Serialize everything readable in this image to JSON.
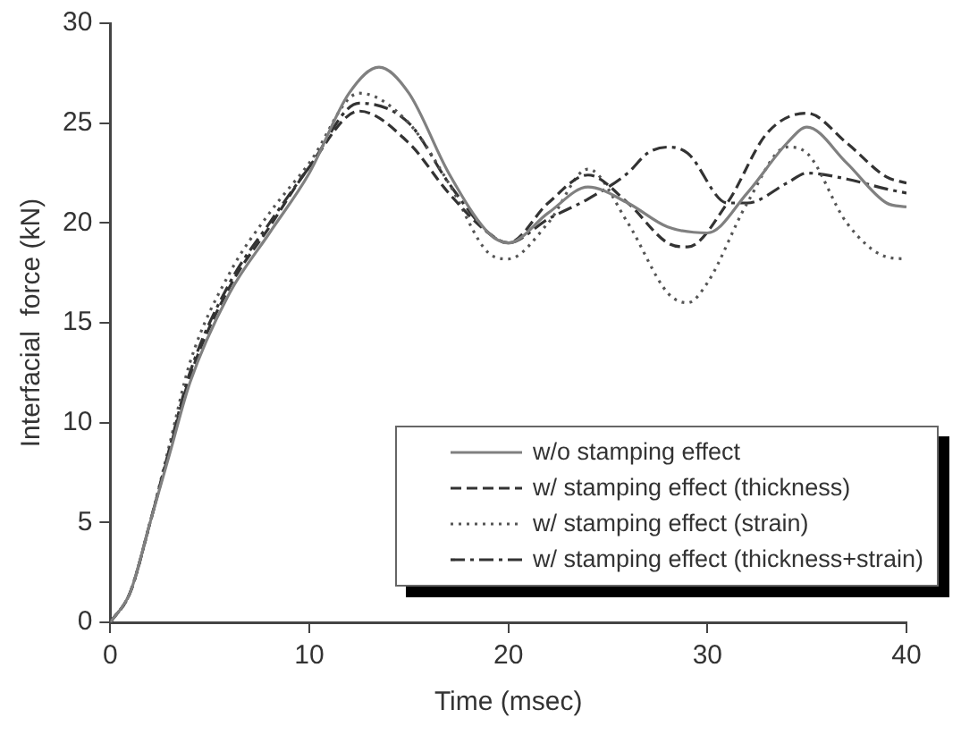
{
  "chart_data": {
    "type": "line",
    "xlabel": "Time (msec)",
    "ylabel": "Interfacial  force (kN)",
    "xlim": [
      0,
      40
    ],
    "xticks": [
      0,
      10,
      20,
      30,
      40
    ],
    "ylim": [
      0,
      30
    ],
    "yticks": [
      0,
      5,
      10,
      15,
      20,
      25,
      30
    ],
    "grid": false,
    "legend": "bottom right",
    "marker": "none",
    "series": [
      {
        "name": "w/o stamping effect",
        "color": "#808080",
        "line_style": "solid",
        "x": [
          0,
          1,
          2,
          3,
          4,
          6,
          8,
          10,
          12,
          13.5,
          15,
          17,
          19,
          20,
          22,
          24,
          26,
          28,
          30,
          32,
          34,
          35,
          37,
          39,
          40
        ],
        "values": [
          0,
          1.5,
          5,
          8.5,
          12,
          16.5,
          19.5,
          22.5,
          26.5,
          27.8,
          26.5,
          22.5,
          19.5,
          19,
          20.5,
          21.8,
          21,
          19.8,
          19.5,
          21.5,
          24,
          24.8,
          23,
          21,
          20.8
        ]
      },
      {
        "name": "w/ stamping effect (thickness)",
        "color": "#333333",
        "line_style": "dashed",
        "x": [
          0,
          1,
          2,
          3,
          4,
          6,
          8,
          10,
          12.5,
          15,
          17,
          19,
          20,
          22,
          24,
          26,
          28,
          29,
          31,
          33,
          35,
          37,
          39,
          40
        ],
        "values": [
          0,
          1.5,
          5,
          8.7,
          12.3,
          16.8,
          19.8,
          22.8,
          25.6,
          24,
          21.5,
          19.5,
          19,
          21,
          22.4,
          21,
          19,
          18.8,
          21,
          24.5,
          25.5,
          24,
          22.3,
          22
        ]
      },
      {
        "name": "w/ stamping effect (strain)",
        "color": "#555555",
        "line_style": "dotted",
        "x": [
          0,
          1,
          2,
          3,
          4,
          6,
          8,
          10,
          12.5,
          15,
          17,
          19,
          20,
          22,
          24,
          26,
          28,
          29,
          30,
          32,
          34,
          35,
          37,
          39,
          40
        ],
        "values": [
          0,
          1.5,
          5,
          9,
          13,
          17.5,
          20.5,
          23,
          26.5,
          25,
          22,
          18.5,
          18.2,
          20,
          22.7,
          20,
          16.5,
          16,
          17,
          21,
          23.8,
          23.5,
          20,
          18.3,
          18.2
        ]
      },
      {
        "name": "w/ stamping effect (thickness+strain)",
        "color": "#333333",
        "line_style": "dashdot",
        "x": [
          0,
          1,
          2,
          3,
          4,
          6,
          8,
          10,
          12.5,
          15,
          17,
          19,
          20,
          22,
          24,
          26,
          27,
          28,
          29,
          31,
          32,
          34,
          35,
          37,
          39,
          40
        ],
        "values": [
          0,
          1.5,
          5,
          8.8,
          12.5,
          17,
          20,
          22.8,
          26,
          25,
          22,
          19.5,
          19,
          20.2,
          21.2,
          22.5,
          23.5,
          23.8,
          23.5,
          21,
          21,
          22,
          22.5,
          22.2,
          21.7,
          21.5
        ]
      }
    ]
  }
}
